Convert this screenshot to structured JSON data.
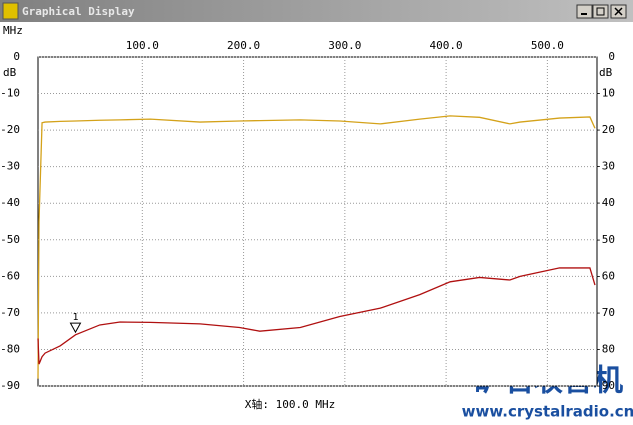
{
  "window_title": "Graphical Display",
  "chart_data": {
    "type": "line",
    "x_unit_label": "MHz",
    "y_unit_label": "dB",
    "x_readout": "X轴: 100.0 MHz",
    "x": [
      -3,
      -2,
      1,
      4,
      19,
      34,
      58,
      78,
      108,
      157,
      196,
      216,
      256,
      295,
      335,
      374,
      404,
      433,
      463,
      473,
      512,
      542,
      547
    ],
    "series": [
      {
        "color": "#d4a21a",
        "values": [
          -88,
          -45,
          -18,
          -17.8,
          -17.6,
          -17.5,
          -17.3,
          -17.2,
          -17,
          -17.8,
          -17.5,
          -17.4,
          -17.2,
          -17.5,
          -18.3,
          -17,
          -16.1,
          -16.5,
          -18.3,
          -17.8,
          -16.7,
          -16.4,
          -19.5
        ]
      },
      {
        "color": "#b01010",
        "values": [
          -77,
          -84,
          -82,
          -81,
          -79,
          -76,
          -73.3,
          -72.5,
          -72.6,
          -73,
          -74,
          -75,
          -74,
          -71,
          -68.7,
          -65,
          -61.5,
          -60.3,
          -61,
          -60,
          -57.7,
          -57.7,
          -62.4
        ]
      }
    ],
    "xlim": [
      -3,
      549
    ],
    "ylim": [
      -90,
      0
    ],
    "xticks": [
      {
        "value": 100,
        "label": "100.0"
      },
      {
        "value": 200,
        "label": "200.0"
      },
      {
        "value": 300,
        "label": "300.0"
      },
      {
        "value": 400,
        "label": "400.0"
      },
      {
        "value": 500,
        "label": "500.0"
      }
    ],
    "yticks": [
      0,
      -10,
      -20,
      -30,
      -40,
      -50,
      -60,
      -70,
      -80,
      -90
    ],
    "grid": true,
    "annotations": [
      {
        "text": "1",
        "x": 34,
        "y": -75
      }
    ]
  },
  "watermark": {
    "title": "矿石收音机",
    "url": "www.crystalradio.cn"
  }
}
